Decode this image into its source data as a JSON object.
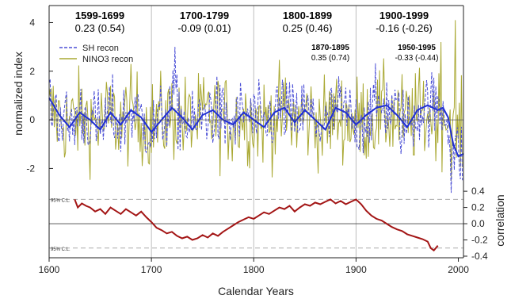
{
  "chart_data": {
    "type": "line",
    "xlabel": "Calendar Years",
    "ylabel_left": "normalized index",
    "ylabel_right": "correlation",
    "xlim": [
      1600,
      2005
    ],
    "x_ticks": [
      "1600",
      "1700",
      "1800",
      "1900",
      "2000"
    ],
    "upper_panel": {
      "ylim": [
        -2.9,
        4.7
      ],
      "y_ticks": [
        "4",
        "2",
        "0",
        "-2"
      ],
      "legend": {
        "position": "top-left"
      },
      "series": [
        {
          "name": "SH recon",
          "style": "dashed",
          "color": "#4b4fd6"
        },
        {
          "name": "NINO3 recon",
          "style": "solid",
          "color": "#a9a832"
        }
      ],
      "smooth_line": {
        "color": "#1f2fd4",
        "x": [
          1600,
          1610,
          1620,
          1630,
          1640,
          1650,
          1660,
          1670,
          1680,
          1690,
          1700,
          1710,
          1720,
          1730,
          1740,
          1750,
          1760,
          1770,
          1780,
          1790,
          1800,
          1810,
          1820,
          1830,
          1840,
          1850,
          1860,
          1870,
          1880,
          1890,
          1900,
          1910,
          1920,
          1930,
          1940,
          1950,
          1960,
          1970,
          1980,
          1985,
          1990,
          1995,
          2000,
          2005
        ],
        "y": [
          0.9,
          0.2,
          -0.3,
          0.3,
          0.0,
          -0.4,
          0.3,
          -0.2,
          0.4,
          0.1,
          -0.5,
          0.0,
          0.5,
          0.1,
          -0.4,
          0.2,
          0.4,
          0.0,
          -0.2,
          0.3,
          0.0,
          -0.3,
          0.3,
          0.5,
          -0.1,
          0.4,
          0.0,
          -0.4,
          0.5,
          0.3,
          -0.2,
          0.2,
          0.5,
          0.6,
          0.2,
          -0.3,
          0.4,
          0.6,
          0.4,
          0.5,
          0.1,
          -1.0,
          -1.5,
          -1.4
        ]
      },
      "periods": [
        {
          "title": "1599-1699",
          "value": "0.23 (0.54)"
        },
        {
          "title": "1700-1799",
          "value": "-0.09 (0.01)"
        },
        {
          "title": "1800-1899",
          "value": "0.25 (0.46)"
        },
        {
          "title": "1900-1999",
          "value": "-0.16 (-0.26)"
        }
      ],
      "subperiods": [
        {
          "title": "1870-1895",
          "value": "0.35 (0.74)"
        },
        {
          "title": "1950-1995",
          "value": "-0.33 (-0.44)"
        }
      ]
    },
    "lower_panel": {
      "ylim": [
        -0.4,
        0.45
      ],
      "y_ticks": [
        "0.4",
        "0.2",
        "0.0",
        "-0.2",
        "-0.4"
      ],
      "cl_label": "95% C.L.",
      "cl_values": [
        0.3,
        -0.3
      ],
      "series": [
        {
          "color": "#a31515",
          "x": [
            1625,
            1628,
            1632,
            1636,
            1640,
            1645,
            1650,
            1655,
            1660,
            1665,
            1670,
            1675,
            1680,
            1685,
            1690,
            1695,
            1700,
            1705,
            1710,
            1715,
            1720,
            1725,
            1730,
            1735,
            1740,
            1745,
            1750,
            1755,
            1760,
            1765,
            1770,
            1775,
            1780,
            1785,
            1790,
            1795,
            1800,
            1805,
            1810,
            1815,
            1820,
            1825,
            1830,
            1835,
            1840,
            1845,
            1850,
            1855,
            1860,
            1865,
            1870,
            1875,
            1880,
            1885,
            1890,
            1895,
            1900,
            1905,
            1910,
            1915,
            1920,
            1925,
            1930,
            1935,
            1940,
            1945,
            1950,
            1955,
            1960,
            1965,
            1970,
            1973,
            1976,
            1980
          ],
          "y": [
            0.3,
            0.2,
            0.25,
            0.22,
            0.2,
            0.15,
            0.18,
            0.12,
            0.2,
            0.16,
            0.12,
            0.18,
            0.14,
            0.1,
            0.15,
            0.08,
            0.02,
            -0.05,
            -0.08,
            -0.12,
            -0.1,
            -0.15,
            -0.18,
            -0.16,
            -0.2,
            -0.18,
            -0.14,
            -0.17,
            -0.12,
            -0.15,
            -0.1,
            -0.06,
            -0.02,
            0.02,
            0.05,
            0.08,
            0.06,
            0.1,
            0.14,
            0.12,
            0.16,
            0.2,
            0.18,
            0.22,
            0.15,
            0.2,
            0.24,
            0.22,
            0.26,
            0.24,
            0.27,
            0.3,
            0.25,
            0.28,
            0.24,
            0.27,
            0.3,
            0.24,
            0.16,
            0.1,
            0.06,
            0.04,
            0.0,
            -0.04,
            -0.07,
            -0.09,
            -0.13,
            -0.15,
            -0.17,
            -0.19,
            -0.22,
            -0.3,
            -0.33,
            -0.27
          ]
        }
      ]
    }
  }
}
